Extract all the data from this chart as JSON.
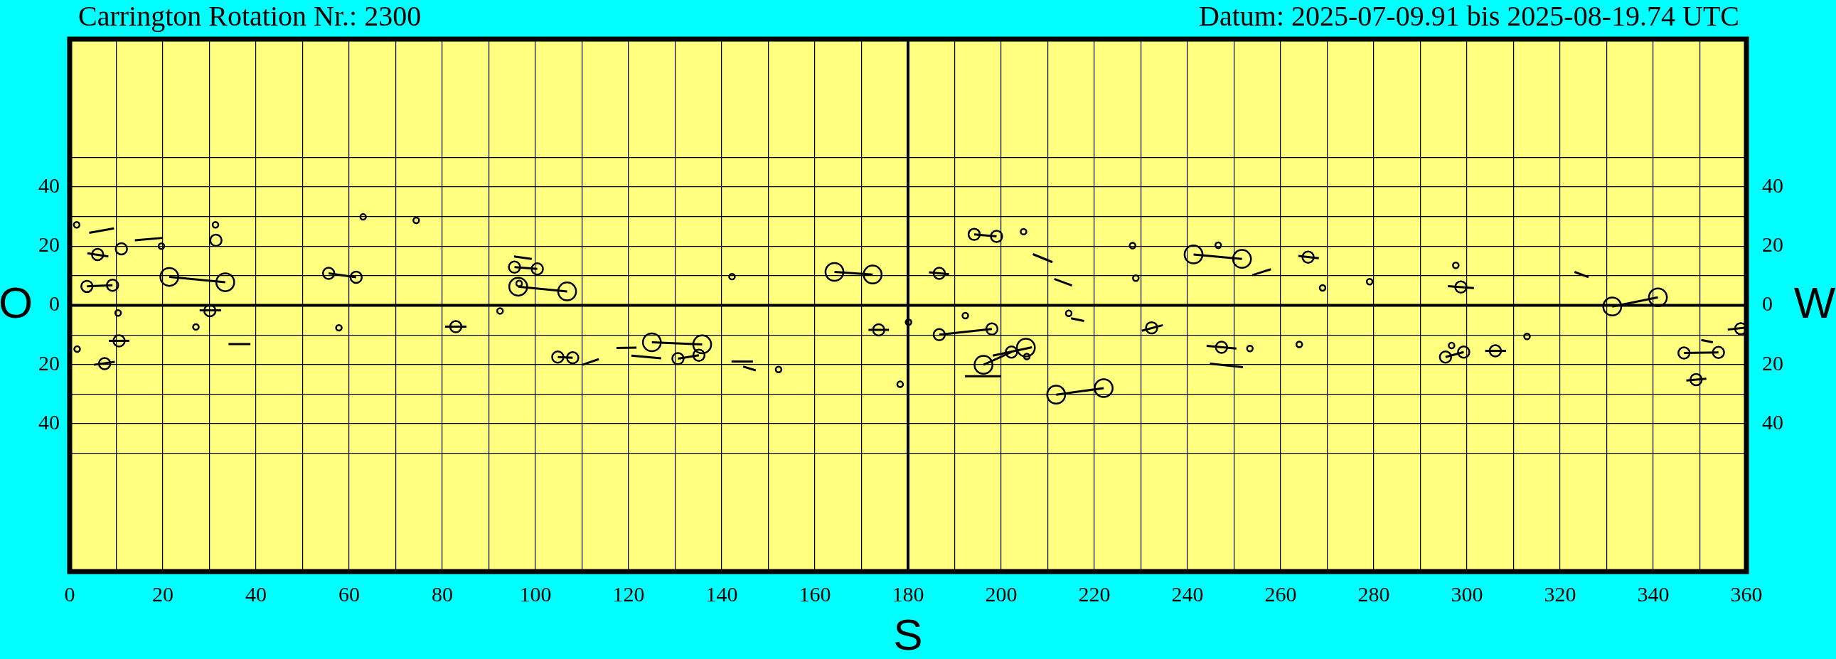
{
  "chart_data": {
    "type": "bubble",
    "title": "Carrington Rotation Nr.: 2300",
    "subtitle": "Datum: 2025-07-09.91 bis 2025-08-19.74 UTC",
    "xlabel": "S",
    "ylabel": "O",
    "y2label": "W",
    "xlim": [
      0,
      360
    ],
    "xticks": [
      0,
      {
        "value": 10,
        "label": null
      },
      20,
      {
        "value": 30,
        "label": null
      },
      40,
      {
        "value": 50,
        "label": null
      },
      60,
      {
        "value": 70,
        "label": null
      },
      80,
      {
        "value": 90,
        "label": null
      },
      100,
      {
        "value": 110,
        "label": null
      },
      120,
      {
        "value": 130,
        "label": null
      },
      140,
      {
        "value": 150,
        "label": null
      },
      160,
      {
        "value": 170,
        "label": null
      },
      180,
      {
        "value": 190,
        "label": null
      },
      200,
      {
        "value": 210,
        "label": null
      },
      220,
      {
        "value": 230,
        "label": null
      },
      240,
      {
        "value": 250,
        "label": null
      },
      260,
      {
        "value": 270,
        "label": null
      },
      280,
      {
        "value": 290,
        "label": null
      },
      300,
      {
        "value": 310,
        "label": null
      },
      320,
      {
        "value": 330,
        "label": null
      },
      340,
      {
        "value": 350,
        "label": null
      },
      360
    ],
    "ylim": [
      -90,
      90
    ],
    "yticks": [
      {
        "value": -50,
        "label": null
      },
      {
        "value": -40,
        "label": "40"
      },
      {
        "value": -30,
        "label": null
      },
      {
        "value": -20,
        "label": "20"
      },
      {
        "value": -10,
        "label": null
      },
      0,
      {
        "value": 10,
        "label": null
      },
      20,
      {
        "value": 30,
        "label": null
      },
      40,
      {
        "value": 50,
        "label": null
      }
    ],
    "y2lim": [
      -90,
      90
    ],
    "y2ticks": [
      {
        "value": -50,
        "label": null
      },
      {
        "value": -40,
        "label": "40"
      },
      {
        "value": -30,
        "label": null
      },
      {
        "value": -20,
        "label": "20"
      },
      {
        "value": -10,
        "label": null
      },
      0,
      {
        "value": 10,
        "label": null
      },
      20,
      {
        "value": 30,
        "label": null
      },
      40,
      {
        "value": 50,
        "label": null
      }
    ],
    "grid": true,
    "ref_lines": [
      {
        "axis": "x",
        "value": 180,
        "color": "#000000"
      },
      {
        "axis": "y",
        "value": 0,
        "color": "#000000"
      }
    ],
    "series": [
      {
        "type": "line",
        "color": "#000000",
        "marker": "none",
        "x": [
          21.4,
          33.4
        ],
        "values": [
          9.6,
          7.8
        ]
      },
      {
        "type": "line",
        "color": "#000000",
        "marker": "none",
        "x": [
          3.7,
          9.2
        ],
        "values": [
          6.4,
          6.8
        ]
      },
      {
        "type": "line",
        "color": "#000000",
        "marker": "none",
        "x": [
          55.6,
          61.5
        ],
        "values": [
          10.8,
          9.5
        ]
      },
      {
        "type": "line",
        "color": "#000000",
        "marker": "none",
        "x": [
          95.5,
          100.4
        ],
        "values": [
          12.9,
          12.3
        ]
      },
      {
        "type": "line",
        "color": "#000000",
        "marker": "none",
        "x": [
          96.3,
          106.8
        ],
        "values": [
          6.3,
          4.7
        ]
      },
      {
        "type": "line",
        "color": "#000000",
        "marker": "none",
        "x": [
          164.2,
          172.4
        ],
        "values": [
          11.3,
          10.4
        ]
      },
      {
        "type": "line",
        "color": "#000000",
        "marker": "none",
        "x": [
          104.8,
          108.0
        ],
        "values": [
          -17.5,
          -17.7
        ]
      },
      {
        "type": "line",
        "color": "#000000",
        "marker": "none",
        "x": [
          125.0,
          135.8
        ],
        "values": [
          -12.5,
          -13.2
        ]
      },
      {
        "type": "line",
        "color": "#000000",
        "marker": "none",
        "x": [
          130.6,
          135.1
        ],
        "values": [
          -18.0,
          -16.9
        ]
      },
      {
        "type": "line",
        "color": "#000000",
        "marker": "none",
        "x": [
          194.2,
          199.0
        ],
        "values": [
          24.0,
          23.3
        ]
      },
      {
        "type": "line",
        "color": "#000000",
        "marker": "none",
        "x": [
          241.3,
          251.7
        ],
        "values": [
          17.2,
          15.7
        ]
      },
      {
        "type": "line",
        "color": "#000000",
        "marker": "none",
        "x": [
          186.7,
          198.0
        ],
        "values": [
          -9.9,
          -8.0
        ]
      },
      {
        "type": "line",
        "color": "#000000",
        "marker": "none",
        "x": [
          196.2,
          202.2
        ],
        "values": [
          -20.1,
          -15.8
        ]
      },
      {
        "type": "line",
        "color": "#000000",
        "marker": "none",
        "x": [
          211.8,
          222.0
        ],
        "values": [
          -30.2,
          -28.0
        ]
      },
      {
        "type": "line",
        "color": "#000000",
        "marker": "none",
        "x": [
          331.2,
          341.0
        ],
        "values": [
          -0.4,
          2.7
        ]
      },
      {
        "type": "line",
        "color": "#000000",
        "marker": "none",
        "x": [
          346.6,
          354.0
        ],
        "values": [
          -16.1,
          -15.9
        ]
      },
      {
        "type": "line",
        "color": "#000000",
        "marker": "none",
        "x": [
          295.4,
          299.3
        ],
        "values": [
          -17.5,
          -15.8
        ]
      },
      {
        "type": "line",
        "color": "#000000",
        "marker": "none",
        "x": [
          4.2,
          9.5
        ],
        "values": [
          24.5,
          26.0
        ]
      },
      {
        "type": "line",
        "color": "#000000",
        "marker": "none",
        "x": [
          14.0,
          20.0
        ],
        "values": [
          22.0,
          22.8
        ]
      },
      {
        "type": "line",
        "color": "#000000",
        "marker": "none",
        "x": [
          3.8,
          8.3
        ],
        "values": [
          17.6,
          16.5
        ]
      },
      {
        "type": "line",
        "color": "#000000",
        "marker": "none",
        "x": [
          27.9,
          32.5
        ],
        "values": [
          -1.7,
          -1.7
        ]
      },
      {
        "type": "line",
        "color": "#000000",
        "marker": "none",
        "x": [
          80.6,
          85.2
        ],
        "values": [
          -7.2,
          -7.2
        ]
      },
      {
        "type": "line",
        "color": "#000000",
        "marker": "none",
        "x": [
          8.4,
          12.8
        ],
        "values": [
          -12.0,
          -12.0
        ]
      },
      {
        "type": "line",
        "color": "#000000",
        "marker": "none",
        "x": [
          34.1,
          38.8
        ],
        "values": [
          -13.1,
          -13.1
        ]
      },
      {
        "type": "line",
        "color": "#000000",
        "marker": "none",
        "x": [
          5.2,
          9.7
        ],
        "values": [
          -20.1,
          -19.1
        ]
      },
      {
        "type": "line",
        "color": "#000000",
        "marker": "none",
        "x": [
          95.4,
          99.2
        ],
        "values": [
          16.5,
          15.7
        ]
      },
      {
        "type": "line",
        "color": "#000000",
        "marker": "none",
        "x": [
          171.5,
          175.9
        ],
        "values": [
          -8.3,
          -8.3
        ]
      },
      {
        "type": "line",
        "color": "#000000",
        "marker": "none",
        "x": [
          110.1,
          113.6
        ],
        "values": [
          -20.1,
          -18.2
        ]
      },
      {
        "type": "line",
        "color": "#000000",
        "marker": "none",
        "x": [
          117.4,
          121.7
        ],
        "values": [
          -14.4,
          -14.3
        ]
      },
      {
        "type": "line",
        "color": "#000000",
        "marker": "none",
        "x": [
          120.6,
          127.0
        ],
        "values": [
          -17.0,
          -17.9
        ]
      },
      {
        "type": "line",
        "color": "#000000",
        "marker": "none",
        "x": [
          142.1,
          146.7
        ],
        "values": [
          -19.0,
          -19.0
        ]
      },
      {
        "type": "line",
        "color": "#000000",
        "marker": "none",
        "x": [
          144.6,
          147.3
        ],
        "values": [
          -20.7,
          -22.0
        ]
      },
      {
        "type": "line",
        "color": "#000000",
        "marker": "none",
        "x": [
          206.8,
          211.0
        ],
        "values": [
          17.3,
          14.6
        ]
      },
      {
        "type": "line",
        "color": "#000000",
        "marker": "none",
        "x": [
          211.4,
          215.2
        ],
        "values": [
          8.9,
          6.7
        ]
      },
      {
        "type": "line",
        "color": "#000000",
        "marker": "none",
        "x": [
          184.5,
          188.8
        ],
        "values": [
          11.2,
          10.5
        ]
      },
      {
        "type": "line",
        "color": "#000000",
        "marker": "none",
        "x": [
          253.9,
          257.9
        ],
        "values": [
          10.2,
          12.2
        ]
      },
      {
        "type": "line",
        "color": "#000000",
        "marker": "none",
        "x": [
          263.8,
          268.2
        ],
        "values": [
          16.7,
          15.9
        ]
      },
      {
        "type": "line",
        "color": "#000000",
        "marker": "none",
        "x": [
          215.0,
          217.8
        ],
        "values": [
          -4.4,
          -5.3
        ]
      },
      {
        "type": "line",
        "color": "#000000",
        "marker": "none",
        "x": [
          230.2,
          234.7
        ],
        "values": [
          -8.6,
          -6.7
        ]
      },
      {
        "type": "line",
        "color": "#000000",
        "marker": "none",
        "x": [
          198.2,
          206.6
        ],
        "values": [
          -17.0,
          -14.2
        ]
      },
      {
        "type": "line",
        "color": "#000000",
        "marker": "none",
        "x": [
          192.2,
          200.0
        ],
        "values": [
          -24.0,
          -24.0
        ]
      },
      {
        "type": "line",
        "color": "#000000",
        "marker": "none",
        "x": [
          244.1,
          250.5
        ],
        "values": [
          -13.7,
          -14.6
        ]
      },
      {
        "type": "line",
        "color": "#000000",
        "marker": "none",
        "x": [
          244.8,
          251.9
        ],
        "values": [
          -19.7,
          -20.9
        ]
      },
      {
        "type": "line",
        "color": "#000000",
        "marker": "none",
        "x": [
          295.9,
          301.5
        ],
        "values": [
          6.5,
          5.8
        ]
      },
      {
        "type": "line",
        "color": "#000000",
        "marker": "none",
        "x": [
          323.1,
          326.1
        ],
        "values": [
          11.3,
          9.5
        ]
      },
      {
        "type": "line",
        "color": "#000000",
        "marker": "none",
        "x": [
          356.0,
          360
        ],
        "values": [
          -8.2,
          -7.5
        ]
      },
      {
        "type": "line",
        "color": "#000000",
        "marker": "none",
        "x": [
          350.3,
          352.8
        ],
        "values": [
          -11.7,
          -12.5
        ]
      },
      {
        "type": "line",
        "color": "#000000",
        "marker": "none",
        "x": [
          347.1,
          351.4
        ],
        "values": [
          -25.4,
          -24.8
        ]
      },
      {
        "type": "line",
        "color": "#000000",
        "marker": "none",
        "x": [
          303.9,
          308.4
        ],
        "values": [
          -15.4,
          -15.4
        ]
      },
      {
        "color": "#000000",
        "x": [
          1.5,
          31.3,
          19.7,
          31.4,
          11.1,
          6.0,
          21.4,
          33.4,
          3.7,
          9.2,
          55.6,
          61.5,
          63.0,
          74.4,
          92.4,
          30.1,
          10.4,
          27.1,
          57.8,
          82.9,
          10.6,
          1.6,
          7.5,
          95.5,
          100.4,
          96.3,
          106.8,
          96.5,
          142.2,
          164.2,
          172.4,
          173.7,
          180.1,
          178.3,
          104.8,
          108.0,
          125.0,
          135.8,
          130.6,
          135.1,
          152.2,
          194.2,
          199.0,
          204.8,
          228.2,
          228.9,
          186.7,
          241.3,
          251.7,
          246.6,
          265.9,
          269.0,
          192.3,
          214.5,
          186.7,
          198.0,
          232.3,
          202.2,
          205.3,
          205.5,
          196.2,
          211.8,
          222.0,
          247.3,
          253.4,
          264.0,
          297.6,
          279.1,
          298.7,
          331.2,
          341.0,
          358.8,
          346.6,
          354.0,
          349.2,
          312.9,
          306.1,
          296.7,
          295.4,
          299.3
        ],
        "values": [
          27.2,
          27.2,
          20.0,
          22.0,
          19.1,
          17.2,
          9.6,
          7.8,
          6.4,
          6.8,
          10.8,
          9.5,
          29.9,
          28.7,
          -1.9,
          -1.8,
          -2.6,
          -7.3,
          -7.6,
          -7.2,
          -12.0,
          -14.8,
          -19.7,
          12.9,
          12.3,
          6.3,
          4.7,
          7.4,
          9.7,
          11.3,
          10.4,
          -8.3,
          -5.7,
          -26.7,
          -17.5,
          -17.7,
          -12.5,
          -13.2,
          -18.0,
          -16.9,
          -21.7,
          24.0,
          23.3,
          24.9,
          20.2,
          9.2,
          10.8,
          17.2,
          15.7,
          20.3,
          16.3,
          5.9,
          -3.5,
          -2.7,
          -9.9,
          -8.0,
          -7.6,
          -15.8,
          -14.3,
          -17.3,
          -20.1,
          -30.2,
          -28.0,
          -14.2,
          -14.6,
          -13.2,
          13.5,
          8.0,
          6.2,
          -0.4,
          2.7,
          -7.9,
          -16.1,
          -15.9,
          -25.1,
          -10.5,
          -15.4,
          -13.6,
          -17.5,
          -15.8
        ],
        "sizes": [
          0.1,
          0.1,
          0.1,
          0.4,
          0.4,
          0.4,
          1,
          1,
          0.4,
          0.4,
          0.4,
          0.4,
          0.1,
          0.1,
          0.1,
          0.4,
          0.1,
          0.1,
          0.1,
          0.4,
          0.4,
          0.1,
          0.4,
          0.4,
          0.4,
          1,
          1,
          0.1,
          0.1,
          1,
          1,
          0.4,
          0.1,
          0.1,
          0.4,
          0.4,
          1,
          1,
          0.4,
          0.4,
          0.1,
          0.4,
          0.4,
          0.1,
          0.1,
          0.1,
          0.4,
          1,
          1,
          0.1,
          0.4,
          0.1,
          0.1,
          0.1,
          0.4,
          0.4,
          0.4,
          0.4,
          1,
          0.1,
          1,
          1,
          1,
          0.4,
          0.1,
          0.1,
          0.1,
          0.1,
          0.4,
          1,
          1,
          0.4,
          0.4,
          0.4,
          0.4,
          0.1,
          0.4,
          0.1,
          0.4,
          0.4
        ]
      }
    ]
  }
}
